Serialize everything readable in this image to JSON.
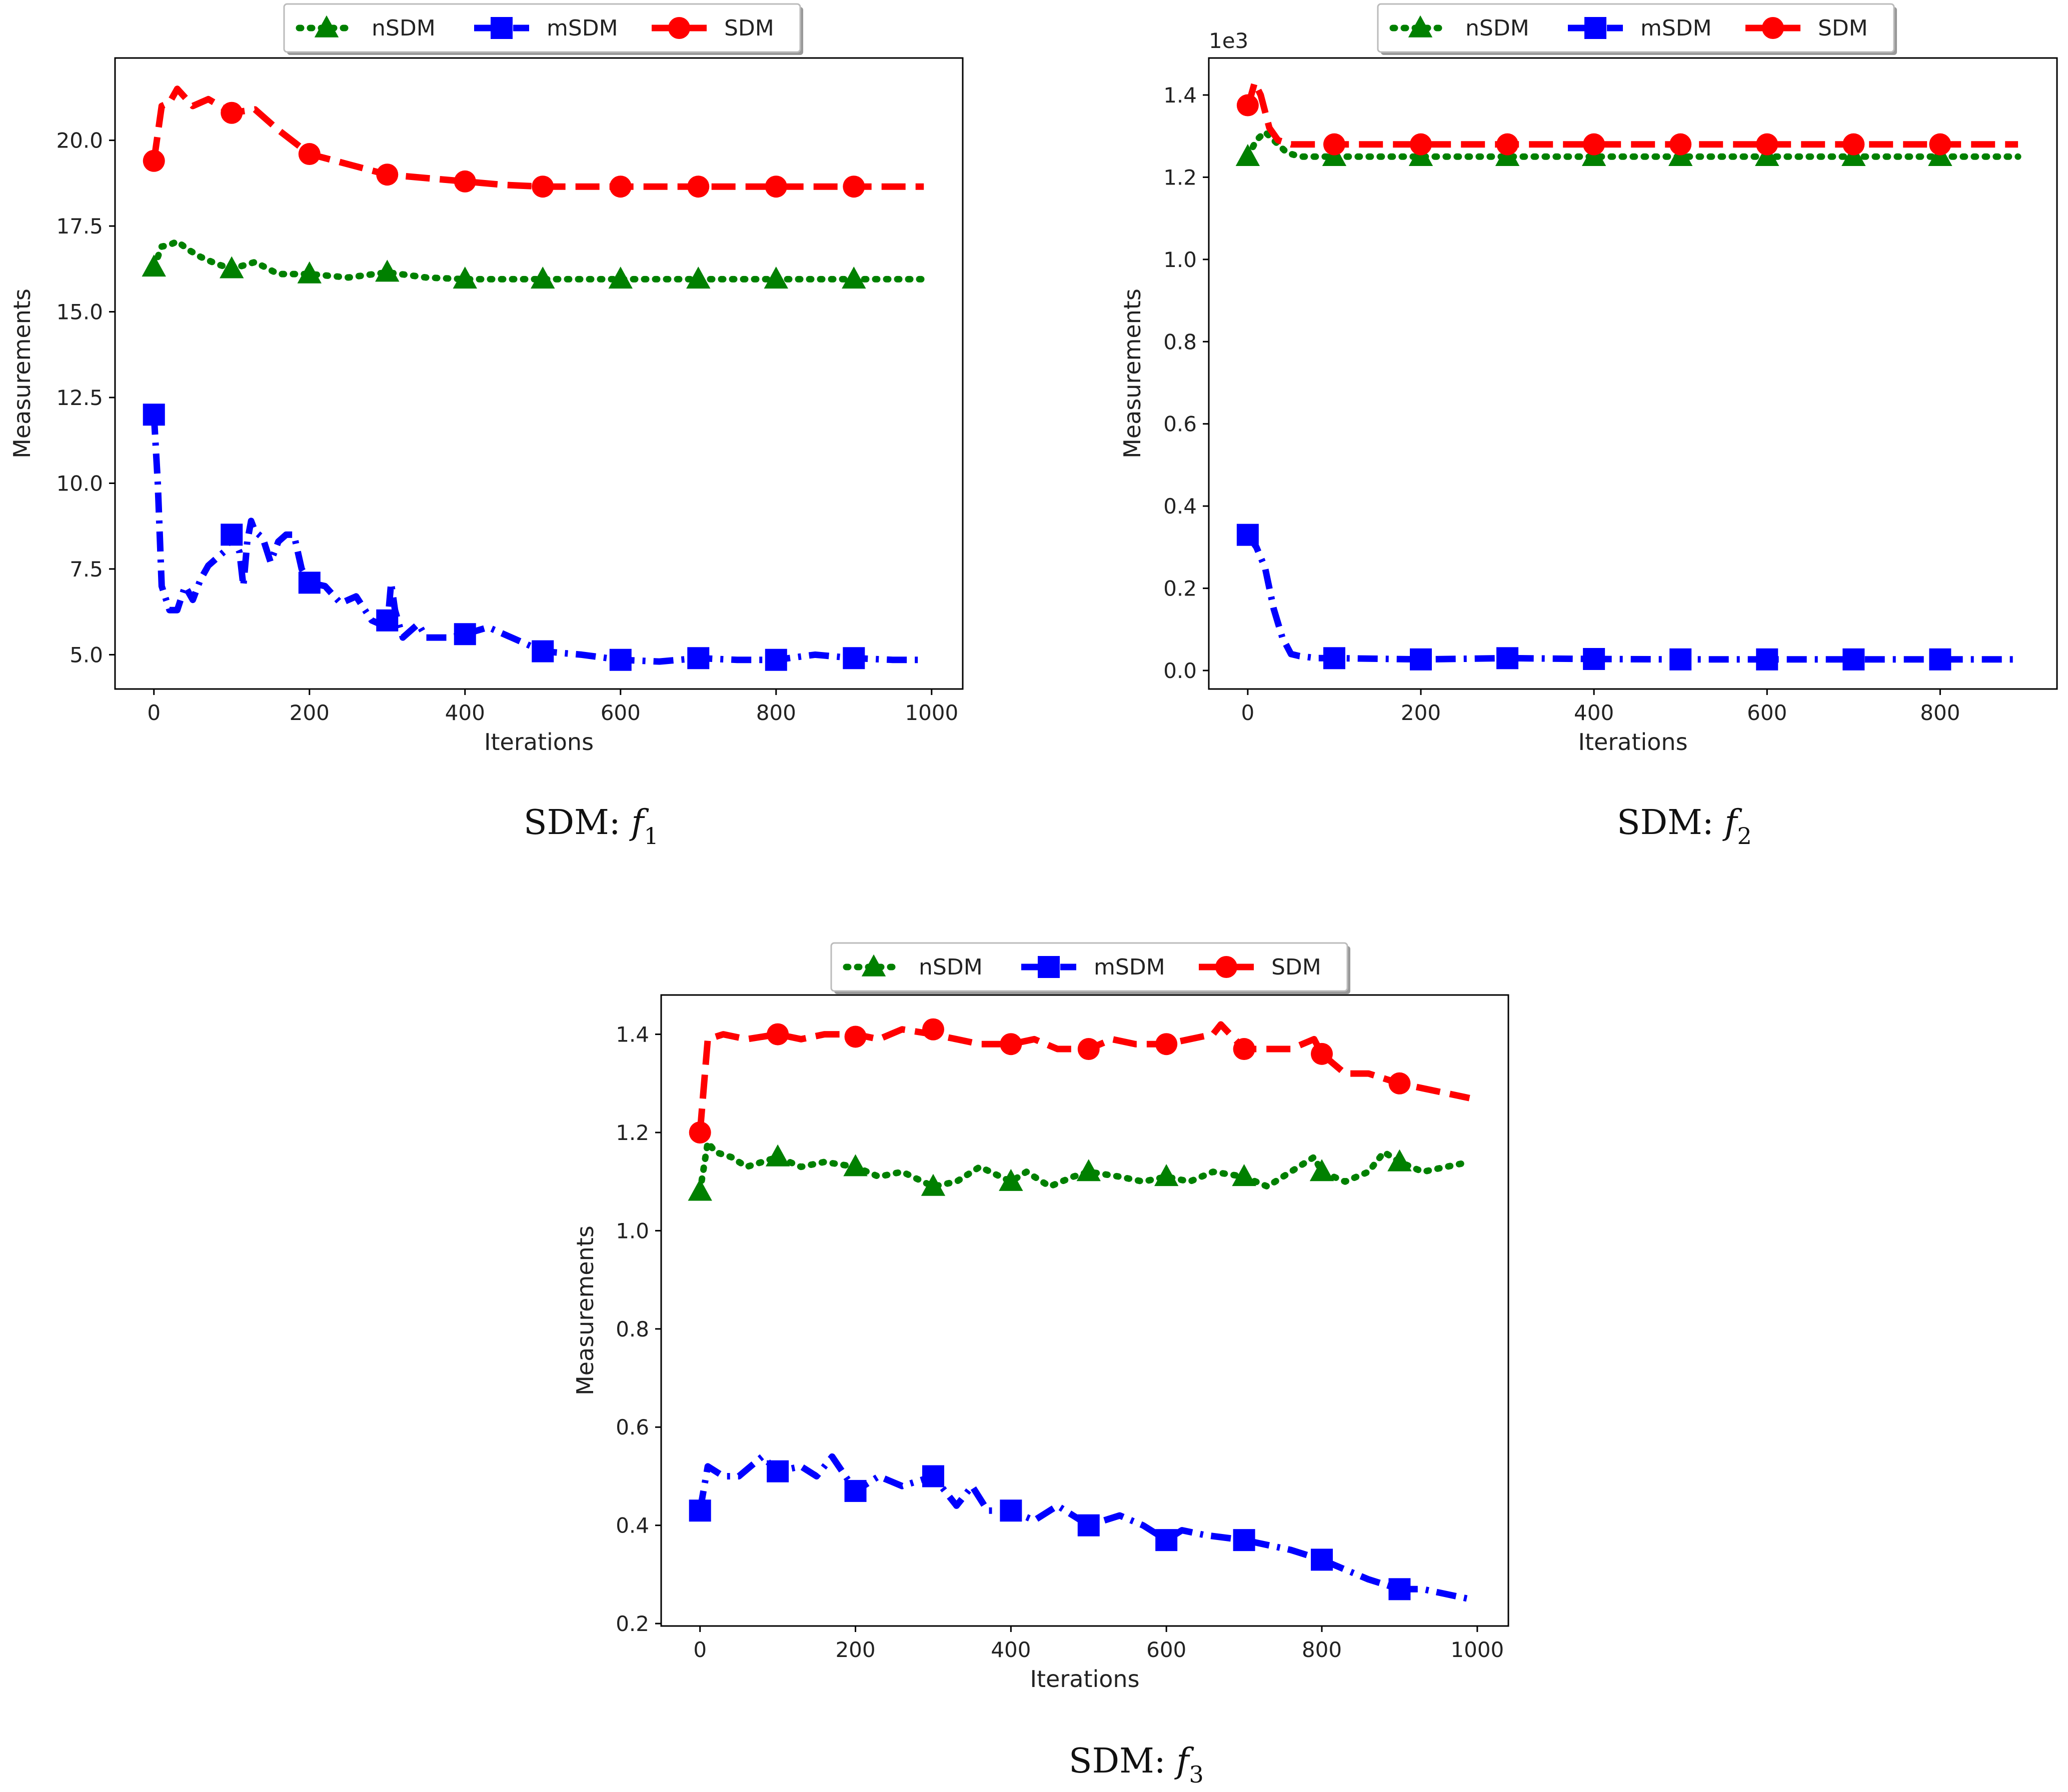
{
  "chart_data": [
    {
      "type": "line",
      "caption": {
        "prefix": "SDM: ",
        "f": "f",
        "sub": "1"
      },
      "xlabel": "Iterations",
      "ylabel": "Measurements",
      "offset_label": "",
      "xlim": [
        -50,
        1040
      ],
      "ylim": [
        4.0,
        22.4
      ],
      "xticks": [
        0,
        200,
        400,
        600,
        800,
        1000
      ],
      "xtick_labels": [
        "0",
        "200",
        "400",
        "600",
        "800",
        "1000"
      ],
      "yticks": [
        5.0,
        7.5,
        10.0,
        12.5,
        15.0,
        17.5,
        20.0
      ],
      "ytick_labels": [
        "5.0",
        "7.5",
        "10.0",
        "12.5",
        "15.0",
        "17.5",
        "20.0"
      ],
      "legend": [
        "nSDM",
        "mSDM",
        "SDM"
      ],
      "series": [
        {
          "name": "nSDM",
          "color": "#008000",
          "style": "dotted",
          "marker": "triangle",
          "x": [
            0,
            10,
            20,
            30,
            45,
            60,
            80,
            100,
            130,
            160,
            200,
            250,
            300,
            350,
            400,
            500,
            600,
            700,
            800,
            900,
            990
          ],
          "y": [
            16.3,
            16.9,
            16.95,
            17.05,
            16.8,
            16.6,
            16.4,
            16.25,
            16.45,
            16.1,
            16.1,
            16.0,
            16.15,
            16.0,
            15.95,
            15.95,
            15.95,
            15.95,
            15.95,
            15.95,
            15.95
          ],
          "marker_x": [
            0,
            100,
            200,
            300,
            400,
            500,
            600,
            700,
            800,
            900
          ],
          "marker_y": [
            16.3,
            16.25,
            16.1,
            16.15,
            15.95,
            15.95,
            15.95,
            15.95,
            15.95,
            15.95
          ]
        },
        {
          "name": "mSDM",
          "color": "#0000ff",
          "style": "dashdot",
          "marker": "square",
          "x": [
            0,
            5,
            10,
            20,
            30,
            40,
            50,
            60,
            70,
            80,
            90,
            100,
            110,
            115,
            120,
            125,
            130,
            140,
            150,
            160,
            170,
            180,
            190,
            200,
            220,
            240,
            260,
            280,
            300,
            305,
            310,
            320,
            330,
            340,
            350,
            360,
            380,
            400,
            430,
            450,
            500,
            550,
            600,
            650,
            700,
            750,
            800,
            850,
            900,
            950,
            990
          ],
          "y": [
            12.0,
            10.0,
            7.0,
            6.3,
            6.3,
            7.0,
            6.6,
            7.2,
            7.6,
            7.8,
            8.0,
            8.5,
            8.0,
            7.0,
            8.3,
            8.9,
            8.6,
            8.4,
            7.7,
            8.3,
            8.5,
            8.5,
            7.5,
            7.1,
            7.0,
            6.5,
            6.7,
            6.0,
            5.8,
            7.1,
            6.3,
            5.5,
            5.7,
            5.9,
            5.5,
            5.5,
            5.5,
            5.6,
            5.8,
            5.6,
            5.1,
            5.0,
            4.85,
            4.8,
            4.9,
            4.85,
            4.85,
            5.0,
            4.9,
            4.85,
            4.85
          ],
          "marker_x": [
            0,
            100,
            200,
            300,
            400,
            500,
            600,
            700,
            800,
            900
          ],
          "marker_y": [
            12.0,
            8.5,
            7.1,
            6.0,
            5.6,
            5.1,
            4.85,
            4.9,
            4.85,
            4.9
          ]
        },
        {
          "name": "SDM",
          "color": "#ff0000",
          "style": "dashed",
          "marker": "circle",
          "x": [
            0,
            10,
            20,
            30,
            50,
            70,
            100,
            130,
            160,
            200,
            250,
            300,
            350,
            400,
            450,
            500,
            600,
            700,
            800,
            900,
            990
          ],
          "y": [
            19.4,
            21.0,
            21.1,
            21.5,
            21.0,
            21.2,
            20.8,
            20.9,
            20.3,
            19.6,
            19.3,
            19.0,
            18.9,
            18.8,
            18.7,
            18.65,
            18.65,
            18.65,
            18.65,
            18.65,
            18.65
          ],
          "marker_x": [
            0,
            100,
            200,
            300,
            400,
            500,
            600,
            700,
            800,
            900
          ],
          "marker_y": [
            19.4,
            20.8,
            19.6,
            19.0,
            18.8,
            18.65,
            18.65,
            18.65,
            18.65,
            18.65
          ]
        }
      ]
    },
    {
      "type": "line",
      "caption": {
        "prefix": "SDM: ",
        "f": "f",
        "sub": "2"
      },
      "xlabel": "Iterations",
      "ylabel": "Measurements",
      "offset_label": "1e3",
      "xlim": [
        -45,
        935
      ],
      "ylim": [
        -0.045,
        1.49
      ],
      "xticks": [
        0,
        200,
        400,
        600,
        800
      ],
      "xtick_labels": [
        "0",
        "200",
        "400",
        "600",
        "800"
      ],
      "yticks": [
        0.0,
        0.2,
        0.4,
        0.6,
        0.8,
        1.0,
        1.2,
        1.4
      ],
      "ytick_labels": [
        "0.0",
        "0.2",
        "0.4",
        "0.6",
        "0.8",
        "1.0",
        "1.2",
        "1.4"
      ],
      "legend": [
        "nSDM",
        "mSDM",
        "SDM"
      ],
      "series": [
        {
          "name": "nSDM",
          "color": "#008000",
          "style": "dotted",
          "marker": "triangle",
          "x": [
            0,
            10,
            20,
            30,
            45,
            60,
            100,
            200,
            300,
            400,
            500,
            600,
            700,
            800,
            890
          ],
          "y": [
            1.25,
            1.29,
            1.31,
            1.29,
            1.26,
            1.25,
            1.25,
            1.25,
            1.25,
            1.25,
            1.25,
            1.25,
            1.25,
            1.25,
            1.25
          ],
          "marker_x": [
            0,
            100,
            200,
            300,
            400,
            500,
            600,
            700,
            800
          ],
          "marker_y": [
            1.25,
            1.25,
            1.25,
            1.25,
            1.25,
            1.25,
            1.25,
            1.25,
            1.25
          ]
        },
        {
          "name": "mSDM",
          "color": "#0000ff",
          "style": "dashdot",
          "marker": "square",
          "x": [
            0,
            10,
            20,
            30,
            40,
            50,
            60,
            80,
            100,
            200,
            300,
            400,
            500,
            600,
            700,
            800,
            890
          ],
          "y": [
            0.33,
            0.3,
            0.25,
            0.15,
            0.08,
            0.04,
            0.035,
            0.03,
            0.03,
            0.027,
            0.03,
            0.028,
            0.027,
            0.027,
            0.027,
            0.027,
            0.027
          ],
          "marker_x": [
            0,
            100,
            200,
            300,
            400,
            500,
            600,
            700,
            800
          ],
          "marker_y": [
            0.33,
            0.03,
            0.027,
            0.03,
            0.028,
            0.027,
            0.027,
            0.027,
            0.027
          ]
        },
        {
          "name": "SDM",
          "color": "#ff0000",
          "style": "dashed",
          "marker": "circle",
          "x": [
            0,
            8,
            15,
            25,
            35,
            50,
            70,
            100,
            200,
            300,
            400,
            500,
            600,
            700,
            800,
            890
          ],
          "y": [
            1.37,
            1.43,
            1.4,
            1.32,
            1.29,
            1.28,
            1.28,
            1.28,
            1.28,
            1.28,
            1.28,
            1.28,
            1.28,
            1.28,
            1.28,
            1.28
          ],
          "marker_x": [
            0,
            100,
            200,
            300,
            400,
            500,
            600,
            700,
            800
          ],
          "marker_y": [
            1.375,
            1.28,
            1.28,
            1.28,
            1.28,
            1.28,
            1.28,
            1.28,
            1.28
          ]
        }
      ]
    },
    {
      "type": "line",
      "caption": {
        "prefix": "SDM: ",
        "f": "f",
        "sub": "3"
      },
      "xlabel": "Iterations",
      "ylabel": "Measurements",
      "offset_label": "",
      "xlim": [
        -50,
        1040
      ],
      "ylim": [
        0.195,
        1.48
      ],
      "xticks": [
        0,
        200,
        400,
        600,
        800,
        1000
      ],
      "xtick_labels": [
        "0",
        "200",
        "400",
        "600",
        "800",
        "1000"
      ],
      "yticks": [
        0.2,
        0.4,
        0.6,
        0.8,
        1.0,
        1.2,
        1.4
      ],
      "ytick_labels": [
        "0.2",
        "0.4",
        "0.6",
        "0.8",
        "1.0",
        "1.2",
        "1.4"
      ],
      "legend": [
        "nSDM",
        "mSDM",
        "SDM"
      ],
      "series": [
        {
          "name": "nSDM",
          "color": "#008000",
          "style": "dotted",
          "marker": "triangle",
          "x": [
            0,
            10,
            20,
            40,
            60,
            80,
            100,
            130,
            160,
            200,
            230,
            260,
            300,
            330,
            360,
            400,
            420,
            450,
            480,
            500,
            540,
            570,
            600,
            630,
            660,
            700,
            730,
            760,
            790,
            800,
            830,
            860,
            880,
            900,
            930,
            960,
            990
          ],
          "y": [
            1.08,
            1.18,
            1.16,
            1.15,
            1.13,
            1.14,
            1.15,
            1.13,
            1.14,
            1.13,
            1.11,
            1.12,
            1.09,
            1.1,
            1.13,
            1.1,
            1.12,
            1.09,
            1.11,
            1.12,
            1.11,
            1.1,
            1.11,
            1.1,
            1.12,
            1.11,
            1.09,
            1.12,
            1.15,
            1.12,
            1.1,
            1.12,
            1.16,
            1.14,
            1.12,
            1.13,
            1.14
          ],
          "marker_x": [
            0,
            100,
            200,
            300,
            400,
            500,
            600,
            700,
            800,
            900
          ],
          "marker_y": [
            1.08,
            1.15,
            1.13,
            1.09,
            1.1,
            1.12,
            1.11,
            1.11,
            1.12,
            1.14
          ]
        },
        {
          "name": "mSDM",
          "color": "#0000ff",
          "style": "dashdot",
          "marker": "square",
          "x": [
            0,
            10,
            30,
            50,
            80,
            100,
            130,
            150,
            170,
            200,
            230,
            260,
            300,
            330,
            350,
            370,
            400,
            430,
            460,
            500,
            540,
            570,
            600,
            620,
            650,
            700,
            730,
            760,
            800,
            830,
            860,
            900,
            930,
            960,
            990
          ],
          "y": [
            0.43,
            0.52,
            0.5,
            0.5,
            0.54,
            0.51,
            0.52,
            0.5,
            0.54,
            0.47,
            0.5,
            0.48,
            0.5,
            0.44,
            0.48,
            0.43,
            0.43,
            0.41,
            0.44,
            0.4,
            0.42,
            0.4,
            0.37,
            0.39,
            0.38,
            0.37,
            0.36,
            0.35,
            0.33,
            0.31,
            0.29,
            0.27,
            0.27,
            0.26,
            0.25
          ],
          "marker_x": [
            0,
            100,
            200,
            300,
            400,
            500,
            600,
            700,
            800,
            900
          ],
          "marker_y": [
            0.43,
            0.51,
            0.47,
            0.5,
            0.43,
            0.4,
            0.37,
            0.37,
            0.33,
            0.27
          ]
        },
        {
          "name": "SDM",
          "color": "#ff0000",
          "style": "dashed",
          "marker": "circle",
          "x": [
            0,
            10,
            30,
            60,
            100,
            130,
            160,
            200,
            230,
            260,
            300,
            330,
            360,
            400,
            430,
            460,
            500,
            530,
            560,
            600,
            630,
            660,
            670,
            700,
            730,
            760,
            790,
            800,
            830,
            860,
            900,
            930,
            960,
            990
          ],
          "y": [
            1.2,
            1.39,
            1.4,
            1.39,
            1.4,
            1.39,
            1.4,
            1.4,
            1.39,
            1.41,
            1.4,
            1.39,
            1.38,
            1.38,
            1.39,
            1.37,
            1.37,
            1.39,
            1.38,
            1.38,
            1.39,
            1.4,
            1.42,
            1.37,
            1.37,
            1.37,
            1.39,
            1.36,
            1.32,
            1.32,
            1.3,
            1.29,
            1.28,
            1.27
          ],
          "marker_x": [
            0,
            100,
            200,
            300,
            400,
            500,
            600,
            700,
            800,
            900
          ],
          "marker_y": [
            1.2,
            1.4,
            1.395,
            1.41,
            1.38,
            1.37,
            1.38,
            1.37,
            1.36,
            1.3
          ]
        }
      ]
    }
  ]
}
